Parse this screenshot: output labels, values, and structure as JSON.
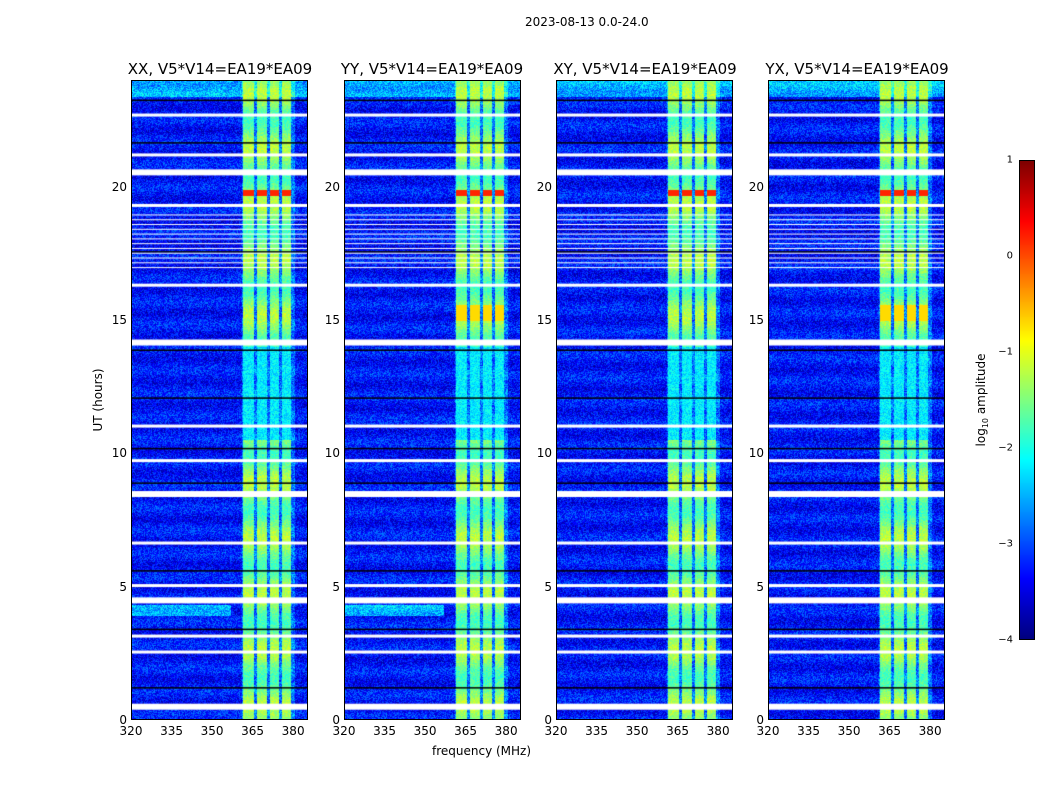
{
  "suptitle": "2023-08-13 0.0-24.0",
  "chart_data": {
    "type": "heatmap",
    "panels": [
      {
        "title": "XX, V5*V14=EA19*EA09"
      },
      {
        "title": "YY, V5*V14=EA19*EA09"
      },
      {
        "title": "XY, V5*V14=EA19*EA09"
      },
      {
        "title": "YX, V5*V14=EA19*EA09"
      }
    ],
    "xlabel": "frequency (MHz)",
    "ylabel": "UT (hours)",
    "xlim": [
      320,
      385.5
    ],
    "ylim": [
      0,
      24
    ],
    "xticks": [
      "320",
      "335",
      "350",
      "365",
      "380"
    ],
    "xtick_values": [
      320,
      335,
      350,
      365,
      380
    ],
    "yticks": [
      "0",
      "5",
      "10",
      "15",
      "20"
    ],
    "ytick_values": [
      0,
      5,
      10,
      15,
      20
    ],
    "colorbar": {
      "label_main": "log",
      "label_sub": "10",
      "label_tail": " amplitude",
      "range": [
        -4,
        1
      ],
      "ticks": [
        "1",
        "0",
        "−1",
        "−2",
        "−3",
        "−4"
      ],
      "tick_values": [
        1,
        0,
        -1,
        -2,
        -3,
        -4
      ],
      "colormap": "jet"
    },
    "rfi_bands_mhz": [
      [
        361.5,
        365.5
      ],
      [
        366.5,
        370.5
      ],
      [
        371.5,
        375
      ],
      [
        376,
        379.5
      ]
    ],
    "flagged_hours": [
      0.5,
      2.5,
      3.1,
      4.5,
      5.0,
      6.6,
      8.5,
      9.7,
      11.0,
      14.2,
      16.3,
      19.3,
      20.6,
      21.2,
      22.7
    ],
    "baseline_log_amplitude": -3.3,
    "rfi_log_amplitude": -1.5,
    "peak_hour": 19.8,
    "peak_log_amplitude": 0.2
  }
}
